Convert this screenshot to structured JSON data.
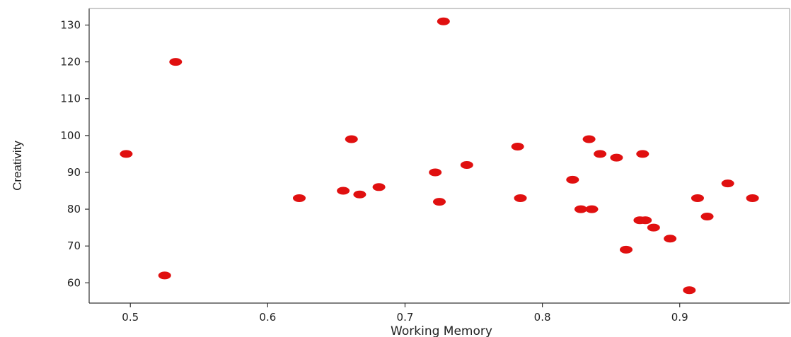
{
  "chart_data": {
    "type": "scatter",
    "title": "",
    "xlabel": "Working Memory",
    "ylabel": "Creativity",
    "xlim": [
      0.47,
      0.98
    ],
    "ylim": [
      54.5,
      134.5
    ],
    "xticks": [
      0.5,
      0.6,
      0.7,
      0.8,
      0.9
    ],
    "xtick_labels": [
      "0.5",
      "0.6",
      "0.7",
      "0.8",
      "0.9"
    ],
    "yticks": [
      60,
      70,
      80,
      90,
      100,
      110,
      120,
      130
    ],
    "ytick_labels": [
      "60",
      "70",
      "80",
      "90",
      "100",
      "110",
      "120",
      "130"
    ],
    "grid": false,
    "legend": "none",
    "marker_color": "#e01010",
    "points": [
      {
        "x": 0.497,
        "y": 95
      },
      {
        "x": 0.525,
        "y": 62
      },
      {
        "x": 0.533,
        "y": 120
      },
      {
        "x": 0.623,
        "y": 83
      },
      {
        "x": 0.655,
        "y": 85
      },
      {
        "x": 0.661,
        "y": 99
      },
      {
        "x": 0.667,
        "y": 84
      },
      {
        "x": 0.681,
        "y": 86
      },
      {
        "x": 0.722,
        "y": 90
      },
      {
        "x": 0.725,
        "y": 82
      },
      {
        "x": 0.728,
        "y": 131
      },
      {
        "x": 0.745,
        "y": 92
      },
      {
        "x": 0.782,
        "y": 97
      },
      {
        "x": 0.784,
        "y": 83
      },
      {
        "x": 0.822,
        "y": 88
      },
      {
        "x": 0.828,
        "y": 80
      },
      {
        "x": 0.834,
        "y": 99
      },
      {
        "x": 0.836,
        "y": 80
      },
      {
        "x": 0.842,
        "y": 95
      },
      {
        "x": 0.854,
        "y": 94
      },
      {
        "x": 0.861,
        "y": 69
      },
      {
        "x": 0.871,
        "y": 77
      },
      {
        "x": 0.873,
        "y": 95
      },
      {
        "x": 0.875,
        "y": 77
      },
      {
        "x": 0.881,
        "y": 75
      },
      {
        "x": 0.893,
        "y": 72
      },
      {
        "x": 0.907,
        "y": 58
      },
      {
        "x": 0.913,
        "y": 83
      },
      {
        "x": 0.92,
        "y": 78
      },
      {
        "x": 0.935,
        "y": 87
      },
      {
        "x": 0.953,
        "y": 83
      }
    ]
  }
}
